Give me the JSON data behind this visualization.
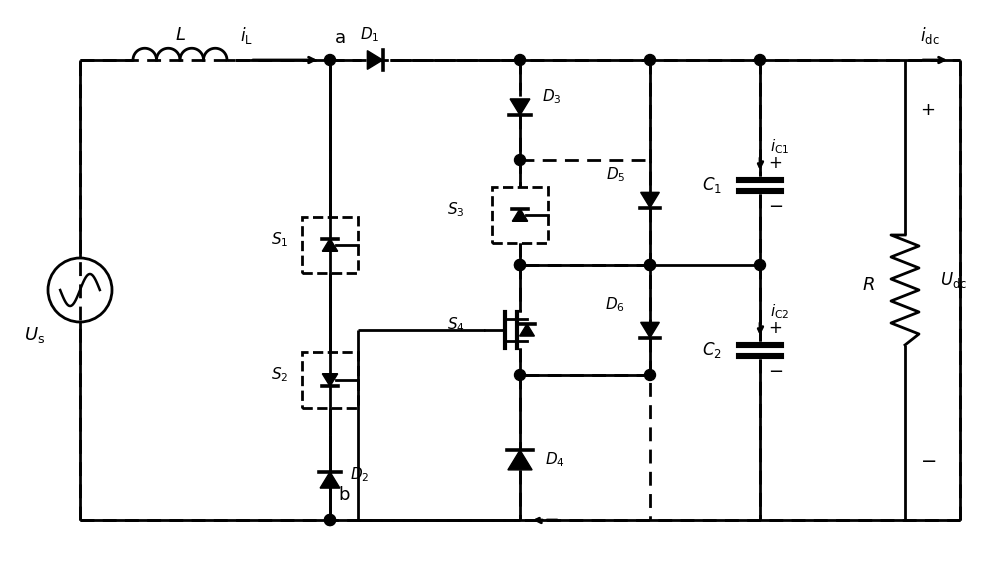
{
  "bg_color": "#ffffff",
  "line_color": "#000000",
  "lw": 2.0,
  "lw_thick": 3.0,
  "figsize": [
    10.0,
    5.65
  ],
  "dpi": 100,
  "xlim": [
    0,
    100
  ],
  "ylim": [
    0,
    56.5
  ]
}
